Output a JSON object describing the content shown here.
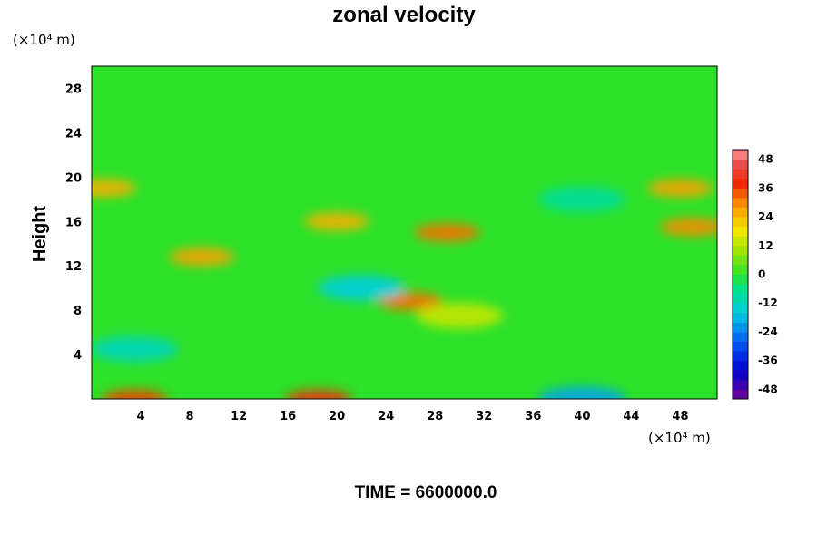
{
  "chart_data": {
    "type": "heatmap",
    "title": "zonal velocity",
    "ylabel": "Height",
    "x_unit": "(×10⁴ m)",
    "y_unit": "(×10⁴ m)",
    "time_label": "TIME = 6600000.0",
    "xlim": [
      0,
      51
    ],
    "ylim": [
      0,
      30
    ],
    "x_ticks": [
      "4",
      "8",
      "12",
      "16",
      "20",
      "24",
      "28",
      "32",
      "36",
      "40",
      "44",
      "48"
    ],
    "y_ticks": [
      "4",
      "8",
      "12",
      "16",
      "20",
      "24",
      "28"
    ],
    "colorbar": {
      "range": [
        -52,
        52
      ],
      "tick_labels": [
        "48",
        "36",
        "24",
        "12",
        "0",
        "-12",
        "-24",
        "-36",
        "-48"
      ]
    },
    "field_features": [
      {
        "x": 3.5,
        "y": 0.0,
        "value": 36
      },
      {
        "x": 18.5,
        "y": 0.0,
        "value": 40
      },
      {
        "x": 40.0,
        "y": 0.0,
        "value": -20
      },
      {
        "x": 3.5,
        "y": 4.5,
        "value": -12
      },
      {
        "x": 9.0,
        "y": 12.8,
        "value": 28
      },
      {
        "x": 29.0,
        "y": 15.0,
        "value": 32
      },
      {
        "x": 49.0,
        "y": 15.5,
        "value": 30
      },
      {
        "x": 20.0,
        "y": 16.0,
        "value": 26
      },
      {
        "x": 1.0,
        "y": 19.0,
        "value": 26
      },
      {
        "x": 48.0,
        "y": 19.0,
        "value": 28
      },
      {
        "x": 26.0,
        "y": 8.8,
        "value": 32
      },
      {
        "x": 22.0,
        "y": 10.0,
        "value": -16
      },
      {
        "x": 30.0,
        "y": 7.5,
        "value": 14
      },
      {
        "x": 40.0,
        "y": 18.0,
        "value": -8
      }
    ]
  }
}
